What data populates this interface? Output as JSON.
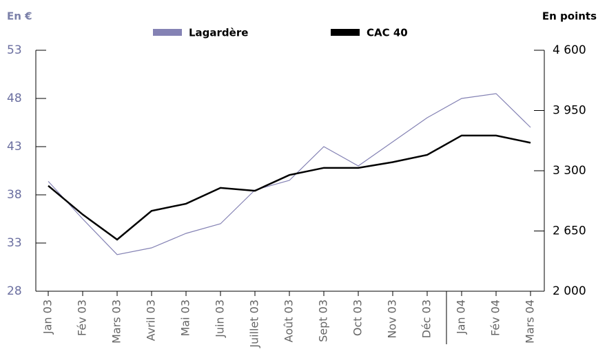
{
  "chart_data": {
    "type": "line",
    "y_label": "En €",
    "y2_label": "En points",
    "categories": [
      "Jan 03",
      "Fév 03",
      "Mars 03",
      "Avril 03",
      "Mai 03",
      "Juin 03",
      "Juillet 03",
      "Août 03",
      "Sept 03",
      "Oct 03",
      "Nov 03",
      "Déc 03",
      "Jan 04",
      "Fév 04",
      "Mars 04"
    ],
    "series": [
      {
        "name": "Lagardère",
        "color": "#8482b4",
        "values": [
          39.4,
          35.5,
          31.8,
          32.5,
          34,
          35,
          38.5,
          39.5,
          43,
          41,
          43.5,
          46,
          48,
          48.5,
          45
        ]
      },
      {
        "name": "CAC 40",
        "color": "#000000",
        "axis": "y2",
        "values": [
          3138,
          2828,
          2557,
          2867,
          2944,
          3115,
          3084,
          3254,
          3331,
          3331,
          3393,
          3471,
          3680,
          3680,
          3602
        ]
      }
    ],
    "ylim": [
      28,
      53
    ],
    "yticks": [
      28,
      33,
      38,
      43,
      48,
      53
    ],
    "y2lim": [
      2000,
      4600
    ],
    "y2ticks": [
      {
        "value": 2000,
        "label": "2 000"
      },
      {
        "value": 2650,
        "label": "2 650"
      },
      {
        "value": 3300,
        "label": "3 300"
      },
      {
        "value": 3950,
        "label": "3 950"
      },
      {
        "value": 4600,
        "label": "4 600"
      }
    ]
  }
}
